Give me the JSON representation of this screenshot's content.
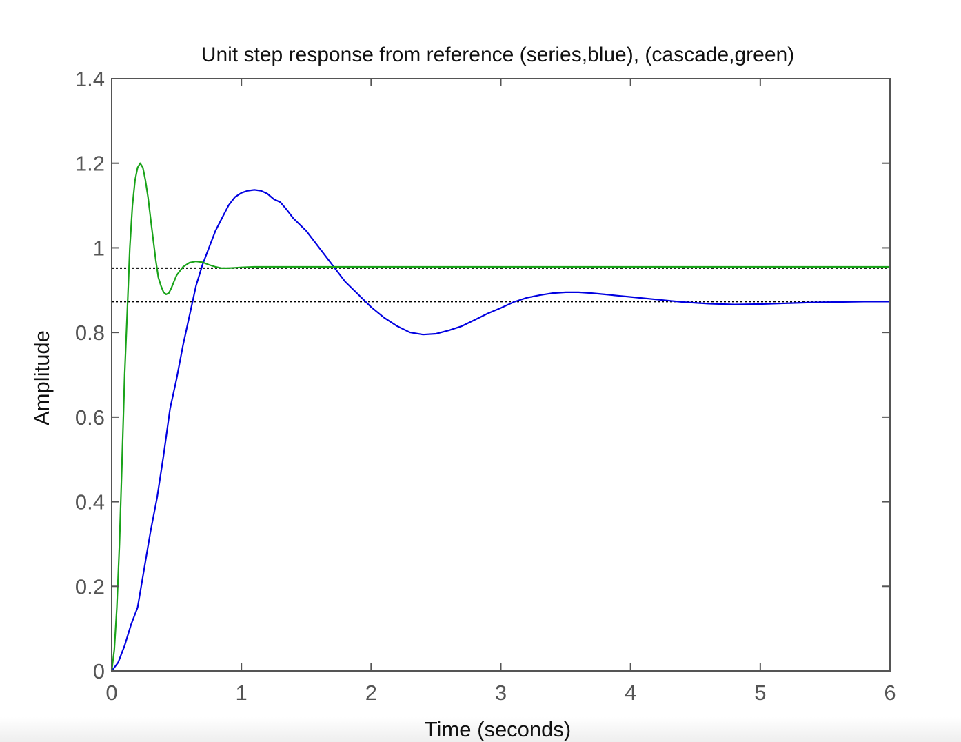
{
  "chart_data": {
    "type": "line",
    "title": "Unit step response from reference (series,blue), (cascade,green)",
    "xlabel": "Time (seconds)",
    "ylabel": "Amplitude",
    "xlim": [
      0,
      6
    ],
    "ylim": [
      0,
      1.4
    ],
    "xticks": [
      0,
      1,
      2,
      3,
      4,
      5,
      6
    ],
    "xtick_labels": [
      "0",
      "1",
      "2",
      "3",
      "4",
      "5",
      "6"
    ],
    "yticks": [
      0,
      0.2,
      0.4,
      0.6,
      0.8,
      1,
      1.2,
      1.4
    ],
    "ytick_labels": [
      "0",
      "0.2",
      "0.4",
      "0.6",
      "0.8",
      "1",
      "1.2",
      "1.4"
    ],
    "grid": false,
    "series": [
      {
        "color": "#0000e0",
        "x": [
          0,
          0.05,
          0.1,
          0.15,
          0.2,
          0.25,
          0.3,
          0.35,
          0.4,
          0.45,
          0.5,
          0.55,
          0.6,
          0.65,
          0.7,
          0.75,
          0.8,
          0.85,
          0.9,
          0.95,
          1.0,
          1.05,
          1.1,
          1.15,
          1.2,
          1.25,
          1.3,
          1.35,
          1.4,
          1.5,
          1.6,
          1.7,
          1.8,
          1.9,
          2.0,
          2.1,
          2.2,
          2.3,
          2.4,
          2.5,
          2.6,
          2.7,
          2.8,
          2.9,
          3.0,
          3.1,
          3.2,
          3.3,
          3.4,
          3.5,
          3.6,
          3.7,
          3.8,
          3.9,
          4.0,
          4.2,
          4.4,
          4.6,
          4.8,
          5.0,
          5.2,
          5.4,
          5.6,
          5.8,
          6.0
        ],
        "y": [
          0,
          0.02,
          0.06,
          0.11,
          0.15,
          0.24,
          0.33,
          0.41,
          0.51,
          0.62,
          0.69,
          0.77,
          0.84,
          0.91,
          0.96,
          1.0,
          1.04,
          1.07,
          1.1,
          1.12,
          1.13,
          1.135,
          1.137,
          1.135,
          1.128,
          1.115,
          1.108,
          1.09,
          1.07,
          1.04,
          1.0,
          0.96,
          0.92,
          0.89,
          0.86,
          0.835,
          0.815,
          0.8,
          0.795,
          0.797,
          0.805,
          0.815,
          0.83,
          0.845,
          0.858,
          0.872,
          0.882,
          0.888,
          0.893,
          0.895,
          0.895,
          0.893,
          0.89,
          0.887,
          0.884,
          0.878,
          0.872,
          0.868,
          0.866,
          0.867,
          0.869,
          0.871,
          0.872,
          0.873,
          0.873
        ]
      },
      {
        "color": "#1aa31a",
        "x": [
          0,
          0.02,
          0.04,
          0.06,
          0.08,
          0.1,
          0.12,
          0.14,
          0.16,
          0.18,
          0.2,
          0.22,
          0.24,
          0.26,
          0.28,
          0.3,
          0.32,
          0.34,
          0.36,
          0.38,
          0.4,
          0.42,
          0.44,
          0.46,
          0.48,
          0.5,
          0.55,
          0.6,
          0.65,
          0.7,
          0.75,
          0.8,
          0.85,
          0.9,
          0.95,
          1.0,
          1.1,
          1.2,
          1.5,
          2.0,
          3.0,
          4.0,
          5.0,
          6.0
        ],
        "y": [
          0,
          0.05,
          0.15,
          0.3,
          0.5,
          0.7,
          0.85,
          1.0,
          1.1,
          1.16,
          1.19,
          1.2,
          1.19,
          1.16,
          1.12,
          1.07,
          1.02,
          0.97,
          0.93,
          0.91,
          0.895,
          0.89,
          0.893,
          0.905,
          0.92,
          0.935,
          0.955,
          0.965,
          0.968,
          0.966,
          0.96,
          0.955,
          0.952,
          0.952,
          0.953,
          0.954,
          0.955,
          0.955,
          0.955,
          0.955,
          0.955,
          0.955,
          0.955,
          0.955
        ]
      }
    ],
    "reference_lines": [
      {
        "y": 0.952,
        "style": "dotted",
        "color": "#000000"
      },
      {
        "y": 0.873,
        "style": "dotted",
        "color": "#000000"
      }
    ]
  }
}
